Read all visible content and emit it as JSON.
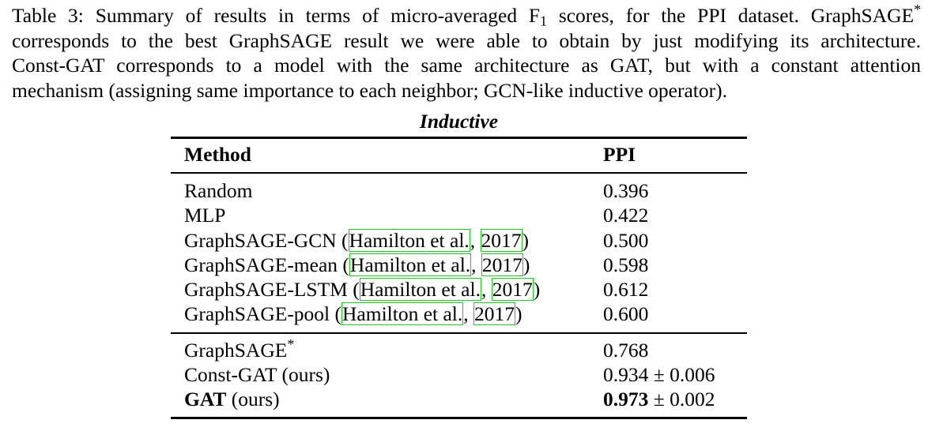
{
  "caption": {
    "label": "Table 3:",
    "line1_a": "Summary of results in terms of micro-averaged F",
    "line1_sub": "1",
    "line1_b": "scores, for the PPI dataset. GraphSAGE",
    "star": "*",
    "line2": "corresponds to the best GraphSAGE result we were able to obtain by just modifying its architecture.",
    "line3": "Const-GAT corresponds to a model with the same architecture as GAT, but with a constant attention",
    "line4": "mechanism (assigning same importance to each neighbor; GCN-like inductive operator)."
  },
  "table": {
    "subtitle": "Inductive",
    "header": {
      "method": "Method",
      "ppi": "PPI"
    },
    "cite_author": "Hamilton et al.",
    "cite_year": "2017",
    "rows_group1": [
      {
        "method": "Random",
        "ppi": "0.396"
      },
      {
        "method": "MLP",
        "ppi": "0.422"
      },
      {
        "method": "GraphSAGE-GCN",
        "ppi": "0.500"
      },
      {
        "method": "GraphSAGE-mean",
        "ppi": "0.598"
      },
      {
        "method": "GraphSAGE-LSTM",
        "ppi": "0.612"
      },
      {
        "method": "GraphSAGE-pool",
        "ppi": "0.600"
      }
    ],
    "rows_group2": [
      {
        "method": "GraphSAGE",
        "star": "*",
        "ppi": "0.768"
      },
      {
        "method": "Const-GAT (ours)",
        "ppi": "0.934 ± 0.006"
      },
      {
        "method": "GAT",
        "method_suffix": "(ours)",
        "ppi_main": "0.973",
        "ppi_pm": "± 0.002"
      }
    ]
  }
}
